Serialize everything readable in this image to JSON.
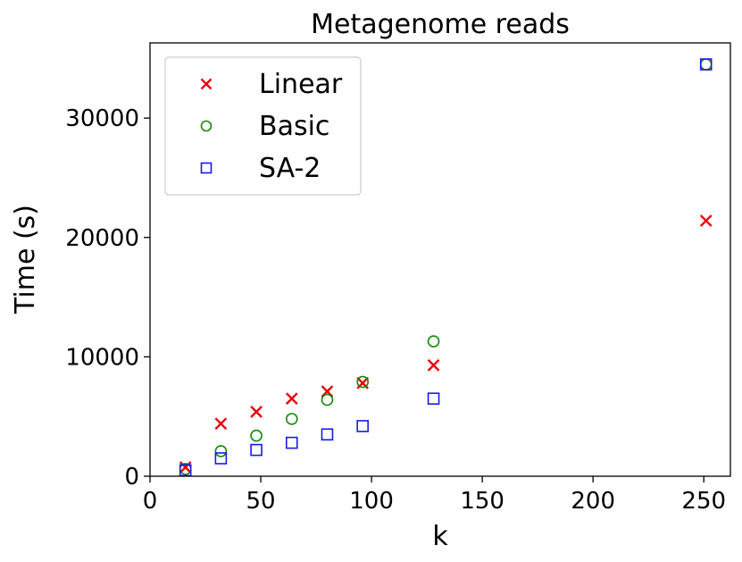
{
  "chart_data": {
    "type": "scatter",
    "title": "Metagenome reads",
    "xlabel": "k",
    "ylabel": "Time (s)",
    "xlim": [
      0,
      262
    ],
    "ylim": [
      0,
      36300
    ],
    "xticks": [
      0,
      50,
      100,
      150,
      200,
      250
    ],
    "xtick_labels": [
      "0",
      "50",
      "100",
      "150",
      "200",
      "250"
    ],
    "yticks": [
      0,
      10000,
      20000,
      30000
    ],
    "ytick_labels": [
      "0",
      "10000",
      "20000",
      "30000"
    ],
    "grid": false,
    "legend_position": "top-left",
    "series": [
      {
        "name": "Linear",
        "marker": "x",
        "color": "#e8000b",
        "x": [
          16,
          32,
          48,
          64,
          80,
          96,
          128,
          251
        ],
        "y": [
          750,
          4400,
          5400,
          6500,
          7100,
          7800,
          9300,
          21400
        ]
      },
      {
        "name": "Basic",
        "marker": "circle",
        "color": "#138a07",
        "x": [
          16,
          32,
          48,
          64,
          80,
          96,
          128,
          251
        ],
        "y": [
          600,
          2100,
          3400,
          4800,
          6400,
          7900,
          11300,
          34500
        ]
      },
      {
        "name": "SA-2",
        "marker": "square",
        "color": "#1a1ae6",
        "x": [
          16,
          32,
          48,
          64,
          80,
          96,
          128,
          251
        ],
        "y": [
          500,
          1500,
          2200,
          2800,
          3500,
          4200,
          6500,
          34500
        ]
      }
    ]
  }
}
